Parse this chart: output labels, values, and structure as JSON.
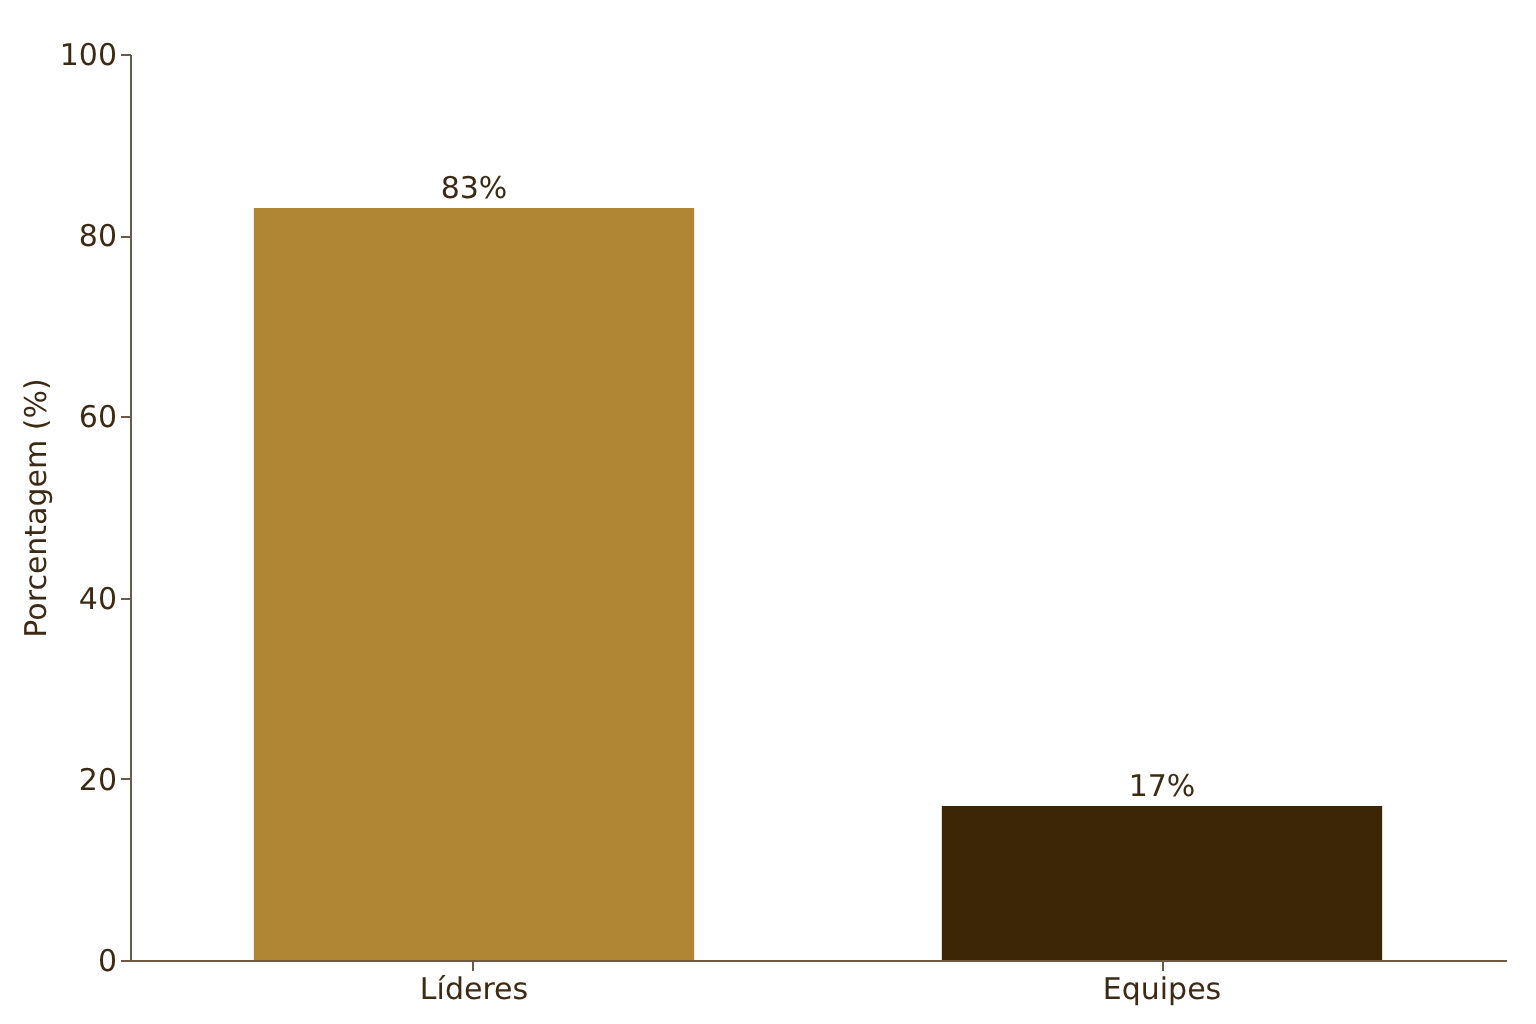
{
  "chart_data": {
    "type": "bar",
    "ylabel": "Porcentagem (%)",
    "categories": [
      "Líderes",
      "Equipes"
    ],
    "values": [
      83,
      17
    ],
    "colors": [
      "#b08534",
      "#3d2605"
    ],
    "value_labels": [
      "83%",
      "17%"
    ],
    "ylim": [
      0,
      100
    ],
    "yticks": [
      0,
      20,
      40,
      60,
      80,
      100
    ],
    "grid": false
  }
}
